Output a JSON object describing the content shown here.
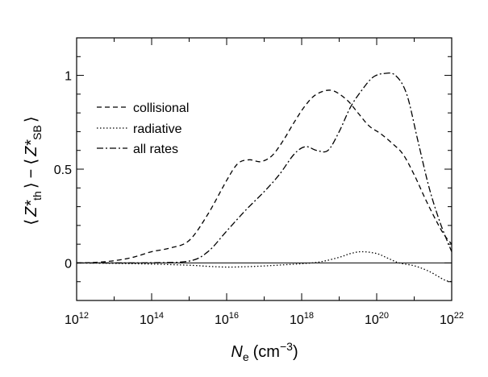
{
  "chart_data": {
    "type": "line",
    "title": "",
    "xlabel": {
      "base": "N",
      "subscript": "e",
      "units_open": "(cm",
      "units_exp": "−3",
      "units_close": ")"
    },
    "ylabel": {
      "open1": "⟨",
      "z1": "Z*",
      "sub1": "th",
      "close1": "⟩",
      "minus": "−",
      "open2": "⟨",
      "z2": "Z*",
      "sub2": "SB",
      "close2": "⟩"
    },
    "x_scale": "log10",
    "xlim": [
      12,
      22
    ],
    "ylim": [
      -0.2,
      1.2
    ],
    "x_ticks": [
      {
        "base": "10",
        "exp": "12",
        "value": 12
      },
      {
        "base": "10",
        "exp": "14",
        "value": 14
      },
      {
        "base": "10",
        "exp": "16",
        "value": 16
      },
      {
        "base": "10",
        "exp": "18",
        "value": 18
      },
      {
        "base": "10",
        "exp": "20",
        "value": 20
      },
      {
        "base": "10",
        "exp": "22",
        "value": 22
      }
    ],
    "y_ticks": [
      {
        "label": "0",
        "value": 0
      },
      {
        "label": "0.5",
        "value": 0.5
      },
      {
        "label": "1",
        "value": 1
      }
    ],
    "reference_line_y": 0,
    "legend_position": "upper-left",
    "series": [
      {
        "name": "collisional",
        "dash": "6,4",
        "x": [
          12,
          12.5,
          13,
          13.5,
          14,
          14.5,
          15,
          15.5,
          16,
          16.3,
          16.6,
          16.9,
          17.2,
          17.5,
          17.8,
          18.1,
          18.4,
          18.8,
          19.2,
          19.5,
          19.8,
          20.1,
          20.4,
          20.7,
          21.0,
          21.3,
          21.6,
          21.8,
          22
        ],
        "y": [
          0,
          0.003,
          0.012,
          0.03,
          0.06,
          0.08,
          0.12,
          0.26,
          0.44,
          0.53,
          0.55,
          0.54,
          0.57,
          0.65,
          0.75,
          0.84,
          0.9,
          0.92,
          0.87,
          0.8,
          0.73,
          0.69,
          0.64,
          0.58,
          0.47,
          0.34,
          0.22,
          0.15,
          0.1
        ]
      },
      {
        "name": "radiative",
        "dash": "1.5,2.5",
        "x": [
          12,
          13,
          14,
          15,
          15.5,
          16,
          16.5,
          17,
          17.5,
          18,
          18.5,
          19,
          19.3,
          19.6,
          20,
          20.3,
          20.6,
          21,
          21.4,
          21.8,
          22
        ],
        "y": [
          0,
          -0.002,
          -0.006,
          -0.012,
          -0.018,
          -0.022,
          -0.02,
          -0.016,
          -0.01,
          -0.004,
          0.006,
          0.03,
          0.05,
          0.06,
          0.05,
          0.025,
          0.0,
          -0.015,
          -0.045,
          -0.09,
          -0.1
        ]
      },
      {
        "name": "all rates",
        "dash": "8,3,2,3",
        "x": [
          12,
          13,
          14,
          15,
          15.5,
          16,
          16.5,
          17,
          17.4,
          17.8,
          18.1,
          18.4,
          18.7,
          19.0,
          19.3,
          19.6,
          19.9,
          20.2,
          20.5,
          20.8,
          21.1,
          21.4,
          21.7,
          22
        ],
        "y": [
          0,
          0,
          0.001,
          0.01,
          0.06,
          0.17,
          0.28,
          0.38,
          0.47,
          0.58,
          0.62,
          0.6,
          0.6,
          0.7,
          0.83,
          0.92,
          0.99,
          1.01,
          1.0,
          0.9,
          0.65,
          0.4,
          0.21,
          0.06
        ]
      }
    ]
  }
}
